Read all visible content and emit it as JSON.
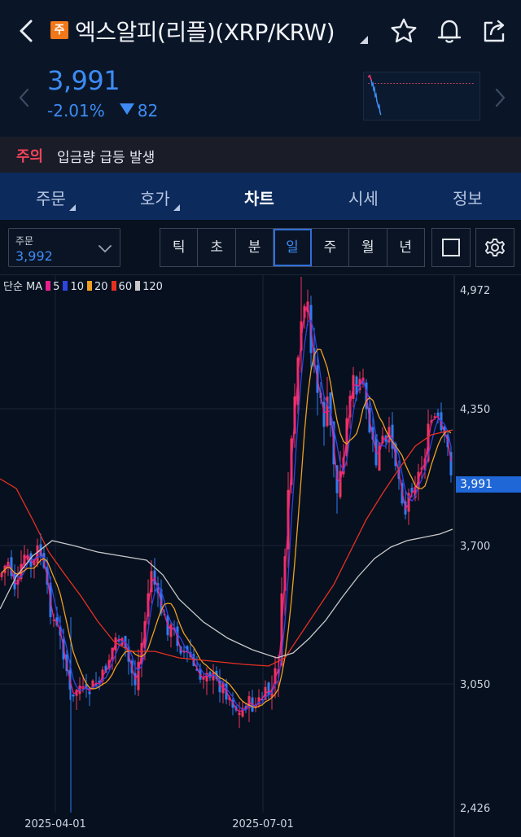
{
  "header": {
    "badge": "주",
    "title": "엑스알피(리플)(XRP/KRW)"
  },
  "price": {
    "current": "3,991",
    "change_percent": "-2.01%",
    "change_value": "82"
  },
  "notice": {
    "tag": "주의",
    "message": "입금량 급등 발생"
  },
  "tabs": [
    {
      "label": "주문",
      "has_sub": true
    },
    {
      "label": "호가",
      "has_sub": true
    },
    {
      "label": "차트",
      "active": true
    },
    {
      "label": "시세"
    },
    {
      "label": "정보"
    }
  ],
  "order_box": {
    "label": "주문",
    "value": "3,992"
  },
  "periods": [
    {
      "label": "틱"
    },
    {
      "label": "초"
    },
    {
      "label": "분"
    },
    {
      "label": "일",
      "selected": true
    },
    {
      "label": "주"
    },
    {
      "label": "월"
    },
    {
      "label": "년"
    }
  ],
  "ma_legend": {
    "prefix": "단순 MA",
    "items": [
      {
        "period": "5",
        "color": "#e8208c"
      },
      {
        "period": "10",
        "color": "#2f45e0"
      },
      {
        "period": "20",
        "color": "#f0a020"
      },
      {
        "period": "60",
        "color": "#e83020"
      },
      {
        "period": "120",
        "color": "#c8c8c8"
      }
    ]
  },
  "chart_data": {
    "type": "candlestick",
    "y_ticks": [
      "4,972",
      "4,350",
      "3,700",
      "3,050",
      "2,426"
    ],
    "x_ticks": [
      "2025-04-01",
      "2025-07-01"
    ],
    "current_price_label": "3,991",
    "ylim": [
      2426,
      4972
    ]
  },
  "colors": {
    "up": "#f0345c",
    "down": "#2f7cf0",
    "accent": "#3d8cf5"
  }
}
